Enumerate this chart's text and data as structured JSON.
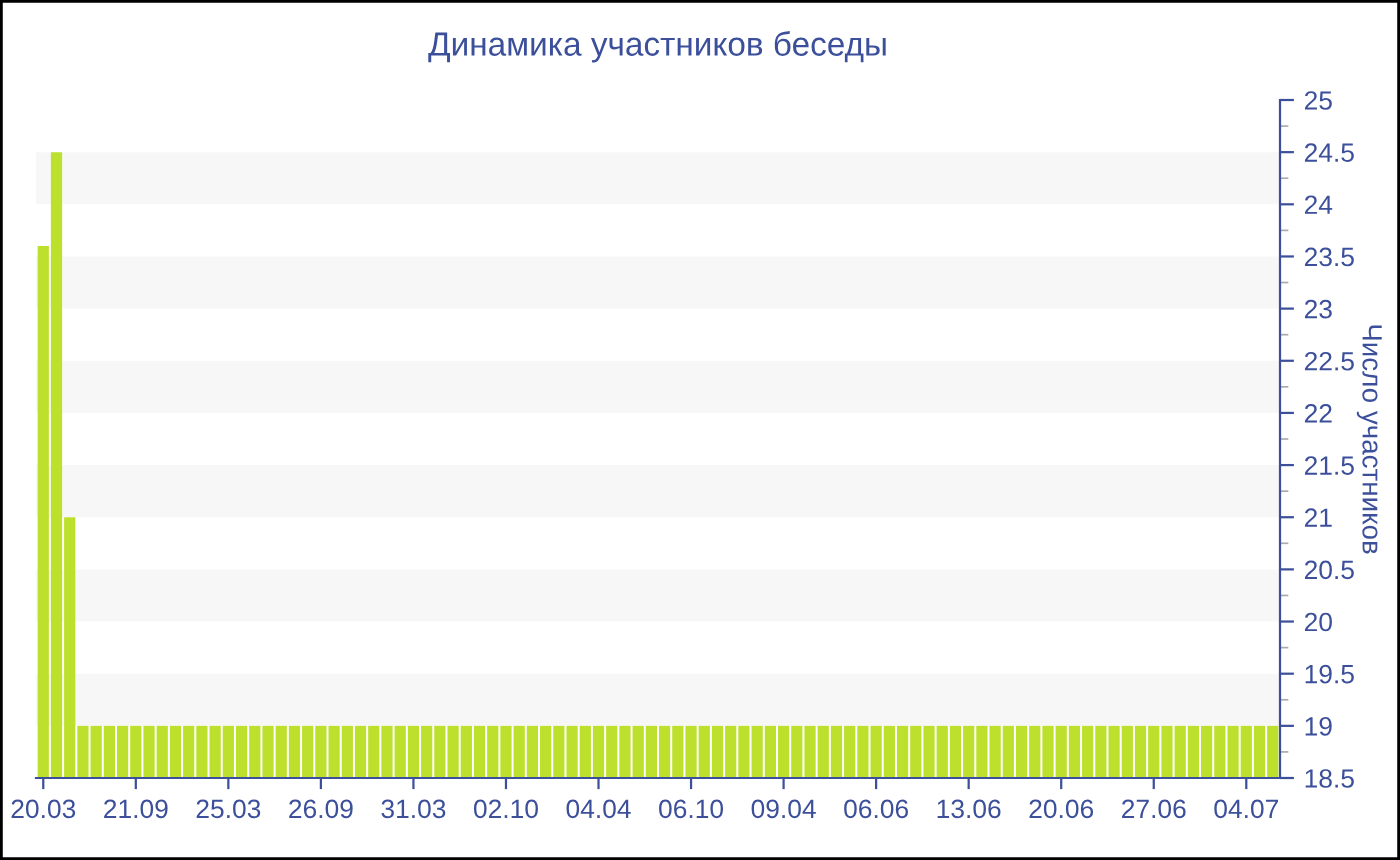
{
  "chart_data": {
    "type": "bar",
    "title": "Динамика участников беседы",
    "ylabel": "Число участников",
    "categories": [
      "20.03",
      null,
      null,
      null,
      null,
      null,
      null,
      "21.09",
      null,
      null,
      null,
      null,
      null,
      null,
      "25.03",
      null,
      null,
      null,
      null,
      null,
      null,
      "26.09",
      null,
      null,
      null,
      null,
      null,
      null,
      "31.03",
      null,
      null,
      null,
      null,
      null,
      null,
      "02.10",
      null,
      null,
      null,
      null,
      null,
      null,
      "04.04",
      null,
      null,
      null,
      null,
      null,
      null,
      "06.10",
      null,
      null,
      null,
      null,
      null,
      null,
      "09.04",
      null,
      null,
      null,
      null,
      null,
      null,
      "06.06",
      null,
      null,
      null,
      null,
      null,
      null,
      "13.06",
      null,
      null,
      null,
      null,
      null,
      null,
      "20.06",
      null,
      null,
      null,
      null,
      null,
      null,
      "27.06",
      null,
      null,
      null,
      null,
      null,
      null,
      "04.07",
      null,
      null
    ],
    "values": [
      23.6,
      24.5,
      21,
      19,
      19,
      19,
      19,
      19,
      19,
      19,
      19,
      19,
      19,
      19,
      19,
      19,
      19,
      19,
      19,
      19,
      19,
      19,
      19,
      19,
      19,
      19,
      19,
      19,
      19,
      19,
      19,
      19,
      19,
      19,
      19,
      19,
      19,
      19,
      19,
      19,
      19,
      19,
      19,
      19,
      19,
      19,
      19,
      19,
      19,
      19,
      19,
      19,
      19,
      19,
      19,
      19,
      19,
      19,
      19,
      19,
      19,
      19,
      19,
      19,
      19,
      19,
      19,
      19,
      19,
      19,
      19,
      19,
      19,
      19,
      19,
      19,
      19,
      19,
      19,
      19,
      19,
      19,
      19,
      19,
      19,
      19,
      19,
      19,
      19,
      19,
      19,
      19,
      19,
      19
    ],
    "color": "#bde02c",
    "ylim": [
      18.5,
      25
    ],
    "yticks": [
      18.5,
      19,
      19.5,
      20,
      20.5,
      21,
      21.5,
      22,
      22.5,
      23,
      23.5,
      24,
      24.5,
      25
    ],
    "bands": [
      {
        "axis": "y",
        "from": 19,
        "to": 19.5,
        "color": "#f7f7f7"
      },
      {
        "axis": "y",
        "from": 20,
        "to": 20.5,
        "color": "#f7f7f7"
      },
      {
        "axis": "y",
        "from": 21,
        "to": 21.5,
        "color": "#f7f7f7"
      },
      {
        "axis": "y",
        "from": 22,
        "to": 22.5,
        "color": "#f7f7f7"
      },
      {
        "axis": "y",
        "from": 23,
        "to": 23.5,
        "color": "#f7f7f7"
      },
      {
        "axis": "y",
        "from": 24,
        "to": 24.5,
        "color": "#f7f7f7"
      }
    ]
  }
}
